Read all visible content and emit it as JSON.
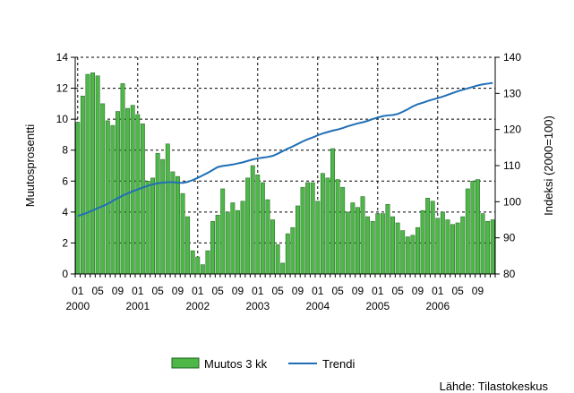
{
  "chart_data": {
    "type": "bar+line",
    "source_label": "Lähde: Tilastokeskus",
    "left_axis": {
      "label": "Muutosprosentti",
      "range": [
        0,
        14
      ],
      "ticks": [
        "0",
        "2",
        "4",
        "6",
        "8",
        "10",
        "12",
        "14"
      ]
    },
    "right_axis": {
      "label": "Indeksi (2000=100)",
      "range": [
        80,
        140
      ],
      "ticks": [
        "80",
        "90",
        "100",
        "110",
        "120",
        "130",
        "140"
      ]
    },
    "x_axis": {
      "month_ticks": [
        "01",
        "05",
        "09",
        "01",
        "05",
        "09",
        "01",
        "05",
        "09",
        "01",
        "05",
        "09",
        "01",
        "05",
        "09",
        "01",
        "05",
        "09",
        "01",
        "05",
        "09"
      ],
      "years": [
        "2000",
        "2001",
        "2002",
        "2003",
        "2004",
        "2005",
        "2006"
      ]
    },
    "grid": "dashed",
    "legend": {
      "position": "bottom",
      "bar_label": "Muutos 3 kk",
      "line_label": "Trendi"
    },
    "colors": {
      "bar": "#4db848",
      "bar_edge": "#1f5f1f",
      "line": "#1f6fb5"
    },
    "series": [
      {
        "name": "Muutos 3 kk",
        "axis": "left",
        "kind": "bar",
        "values": [
          9.8,
          11.5,
          12.9,
          13.0,
          12.8,
          11.0,
          9.9,
          9.6,
          10.5,
          12.3,
          10.7,
          10.9,
          10.3,
          9.7,
          6.0,
          6.2,
          7.8,
          7.4,
          8.4,
          6.6,
          6.3,
          5.2,
          3.7,
          1.5,
          1.1,
          0.6,
          1.5,
          3.4,
          3.8,
          5.5,
          4.0,
          4.6,
          4.1,
          4.7,
          6.2,
          7.0,
          6.4,
          5.9,
          4.8,
          3.5,
          1.9,
          0.7,
          2.6,
          3.0,
          4.4,
          5.6,
          5.9,
          5.9,
          4.7,
          6.5,
          6.2,
          8.1,
          6.1,
          5.6,
          4.0,
          4.6,
          4.3,
          5.0,
          3.7,
          3.4,
          3.9,
          3.9,
          4.5,
          3.7,
          3.3,
          2.8,
          2.4,
          2.5,
          3.0,
          4.1,
          4.9,
          4.7,
          3.6,
          4.0,
          3.5,
          3.2,
          3.3,
          3.7,
          5.5,
          6.0,
          6.1,
          3.9,
          3.4,
          3.5
        ]
      },
      {
        "name": "Trendi",
        "axis": "right",
        "kind": "line",
        "values": [
          96.0,
          96.5,
          97.0,
          97.6,
          98.2,
          98.8,
          99.4,
          100.2,
          101.0,
          101.7,
          102.3,
          102.9,
          103.4,
          103.9,
          104.4,
          104.8,
          105.1,
          105.3,
          105.4,
          105.4,
          105.3,
          105.2,
          105.5,
          106.0,
          106.6,
          107.3,
          108.0,
          108.8,
          109.6,
          109.9,
          110.1,
          110.3,
          110.6,
          110.9,
          111.3,
          111.7,
          112.0,
          112.2,
          112.4,
          112.7,
          113.3,
          114.0,
          114.7,
          115.3,
          116.0,
          116.7,
          117.3,
          117.8,
          118.4,
          118.9,
          119.3,
          119.7,
          120.0,
          120.4,
          120.9,
          121.3,
          121.7,
          122.0,
          122.4,
          122.9,
          123.3,
          123.7,
          123.9,
          124.0,
          124.3,
          124.9,
          125.6,
          126.4,
          127.0,
          127.4,
          127.9,
          128.3,
          128.7,
          129.1,
          129.6,
          130.1,
          130.6,
          131.0,
          131.4,
          131.8,
          132.2,
          132.5,
          132.7,
          132.9
        ]
      }
    ]
  }
}
